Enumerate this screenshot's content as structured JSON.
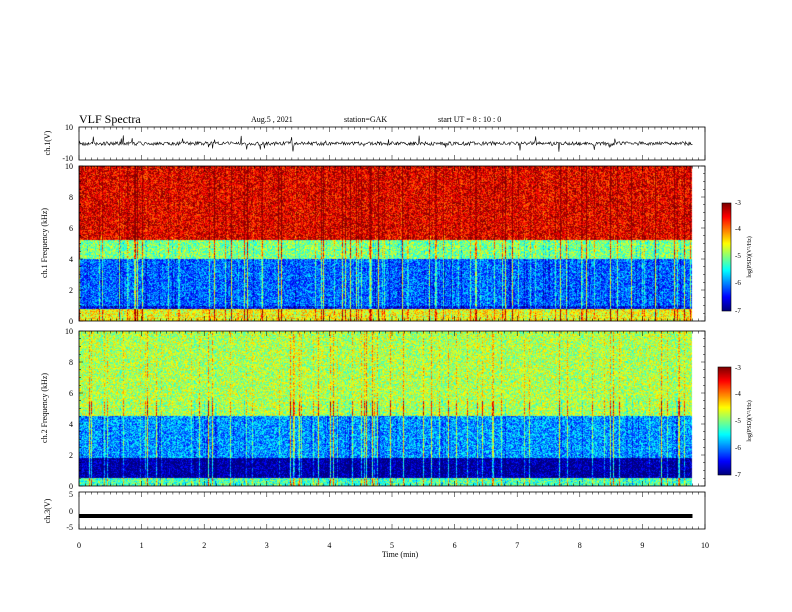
{
  "header": {
    "title": "VLF Spectra",
    "date": "Aug.5 , 2021",
    "station": "station=GAK",
    "start": "start UT = 8 : 10 : 0"
  },
  "colors": {
    "spectrum_low": "#000080",
    "spectrum_high": "#ff3000"
  },
  "chart_data": [
    {
      "type": "line",
      "ylabel": "ch.1(V)",
      "yticks": [
        "10",
        "-10"
      ],
      "ylim": [
        -10,
        10
      ],
      "xlim": [
        0,
        10
      ],
      "description_series": "waveform amplitude oscillating near 0 V with spikes up to about ±5 V",
      "data_end_min": 9.8
    },
    {
      "type": "heatmap",
      "ylabel": "ch.1 Frequency (kHz)",
      "yticks": [
        "0",
        "2",
        "4",
        "6",
        "8",
        "10"
      ],
      "ylim": [
        0,
        10
      ],
      "xlim": [
        0,
        10
      ],
      "colorbar": {
        "label": "log(PSD)(V²/Hz)",
        "ticks": [
          "-3",
          "-4",
          "-5",
          "-6",
          "-7"
        ],
        "range": [
          -7,
          -3
        ]
      },
      "bands_khz": [
        {
          "from": 0,
          "to": 0.8,
          "level": -4.5
        },
        {
          "from": 0.8,
          "to": 1.0,
          "level": -6.5
        },
        {
          "from": 1.0,
          "to": 4.0,
          "level": -6.1
        },
        {
          "from": 4.0,
          "to": 5.2,
          "level": -5.0
        },
        {
          "from": 5.2,
          "to": 10,
          "level": -3.4
        }
      ]
    },
    {
      "type": "heatmap",
      "ylabel": "ch.2 Frequency (kHz)",
      "yticks": [
        "0",
        "2",
        "4",
        "6",
        "8",
        "10"
      ],
      "ylim": [
        0,
        10
      ],
      "xlim": [
        0,
        10
      ],
      "colorbar": {
        "label": "log(PSD)(V²/Hz)",
        "ticks": [
          "-3",
          "-4",
          "-5",
          "-6",
          "-7"
        ],
        "range": [
          -7,
          -3
        ]
      },
      "bands_khz": [
        {
          "from": 0,
          "to": 0.5,
          "level": -5.2
        },
        {
          "from": 0.5,
          "to": 1.8,
          "level": -6.9
        },
        {
          "from": 1.8,
          "to": 4.5,
          "level": -5.9
        },
        {
          "from": 4.5,
          "to": 10,
          "level": -4.8
        }
      ]
    },
    {
      "type": "line",
      "ylabel": "ch.3(V)",
      "yticks": [
        "5",
        "0",
        "-5"
      ],
      "ylim": [
        -5,
        5
      ],
      "xlim": [
        0,
        10
      ],
      "constant_value": -1.5,
      "data_end_min": 9.8,
      "xlabel": "Time (min)",
      "xticks": [
        "0",
        "1",
        "2",
        "3",
        "4",
        "5",
        "6",
        "7",
        "8",
        "9",
        "10"
      ]
    }
  ]
}
